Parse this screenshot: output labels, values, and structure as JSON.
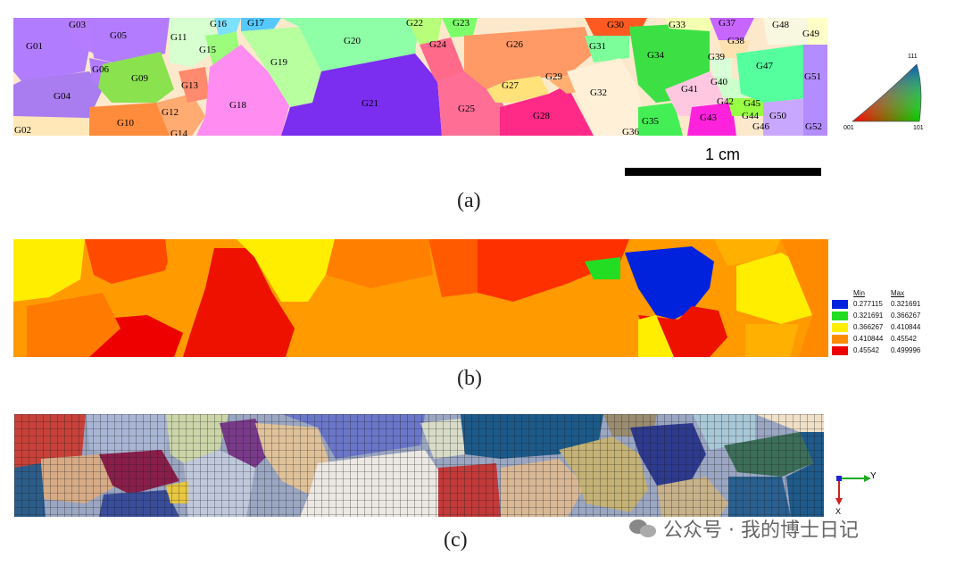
{
  "figure": {
    "panel_a": {
      "caption": "(a)",
      "scale_label": "1 cm",
      "ipf_corners": {
        "top": "111",
        "left": "001",
        "right": "101"
      },
      "grain_labels": [
        {
          "id": "G01",
          "color": "#b27cff"
        },
        {
          "id": "G02",
          "color": "#ffe7b8"
        },
        {
          "id": "G03",
          "color": "#b67cff"
        },
        {
          "id": "G04",
          "color": "#a97cf0"
        },
        {
          "id": "G05",
          "color": "#b37cff"
        },
        {
          "id": "G06",
          "color": "#8be074"
        },
        {
          "id": "G09",
          "color": "#8be24f"
        },
        {
          "id": "G10",
          "color": "#ff8c3c"
        },
        {
          "id": "G11",
          "color": "#d7ffd0"
        },
        {
          "id": "G12",
          "color": "#ffab72"
        },
        {
          "id": "G13",
          "color": "#ff8a6e"
        },
        {
          "id": "G14",
          "color": "#ffa07a"
        },
        {
          "id": "G15",
          "color": "#9cfc7c"
        },
        {
          "id": "G16",
          "color": "#7ce0ff"
        },
        {
          "id": "G17",
          "color": "#55c8ff"
        },
        {
          "id": "G18",
          "color": "#ff8cf0"
        },
        {
          "id": "G19",
          "color": "#b8ffa0"
        },
        {
          "id": "G20",
          "color": "#8effa6"
        },
        {
          "id": "G21",
          "color": "#7b2df0"
        },
        {
          "id": "G22",
          "color": "#b7ff7a"
        },
        {
          "id": "G23",
          "color": "#7cff6a"
        },
        {
          "id": "G24",
          "color": "#ff6a8a"
        },
        {
          "id": "G25",
          "color": "#ff6e95"
        },
        {
          "id": "G26",
          "color": "#ff9966"
        },
        {
          "id": "G27",
          "color": "#ffe27a"
        },
        {
          "id": "G28",
          "color": "#ff2a88"
        },
        {
          "id": "G29",
          "color": "#ffb070"
        },
        {
          "id": "G30",
          "color": "#ff5a22"
        },
        {
          "id": "G31",
          "color": "#7cff9a"
        },
        {
          "id": "G32",
          "color": "#fff0d7"
        },
        {
          "id": "G33",
          "color": "#f4ffb0"
        },
        {
          "id": "G34",
          "color": "#3ce044"
        },
        {
          "id": "G35",
          "color": "#44ee55"
        },
        {
          "id": "G36",
          "color": "#aaff88"
        },
        {
          "id": "G37",
          "color": "#c766ff"
        },
        {
          "id": "G38",
          "color": "#ffe2b0"
        },
        {
          "id": "G39",
          "color": "#d8ffd8"
        },
        {
          "id": "G40",
          "color": "#ccffcc"
        },
        {
          "id": "G41",
          "color": "#ffc8e0"
        },
        {
          "id": "G42",
          "color": "#ff70ff"
        },
        {
          "id": "G43",
          "color": "#ff22dd"
        },
        {
          "id": "G44",
          "color": "#ddf5dd"
        },
        {
          "id": "G45",
          "color": "#99ff44"
        },
        {
          "id": "G46",
          "color": "#f0f0ff"
        },
        {
          "id": "G47",
          "color": "#55ff9e"
        },
        {
          "id": "G48",
          "color": "#f8f8e0"
        },
        {
          "id": "G49",
          "color": "#ffffc8"
        },
        {
          "id": "G50",
          "color": "#c8a8ff"
        },
        {
          "id": "G51",
          "color": "#b38cff"
        },
        {
          "id": "G52",
          "color": "#a6e0ff"
        }
      ]
    },
    "panel_b": {
      "caption": "(b)",
      "legend": {
        "header_min": "Min",
        "header_max": "Max",
        "rows": [
          {
            "min": "0.277115",
            "max": "0.321691",
            "color": "#0022dd"
          },
          {
            "min": "0.321691",
            "max": "0.366267",
            "color": "#22dd22"
          },
          {
            "min": "0.366267",
            "max": "0.410844",
            "color": "#ffee00"
          },
          {
            "min": "0.410844",
            "max": "0.45542",
            "color": "#ff8c00"
          },
          {
            "min": "0.45542",
            "max": "0.499996",
            "color": "#ee0000"
          }
        ]
      }
    },
    "panel_c": {
      "caption": "(c)",
      "axes": {
        "y_label": "Y",
        "x_label": "X"
      }
    },
    "watermark": "公众号 · 我的博士日记"
  }
}
